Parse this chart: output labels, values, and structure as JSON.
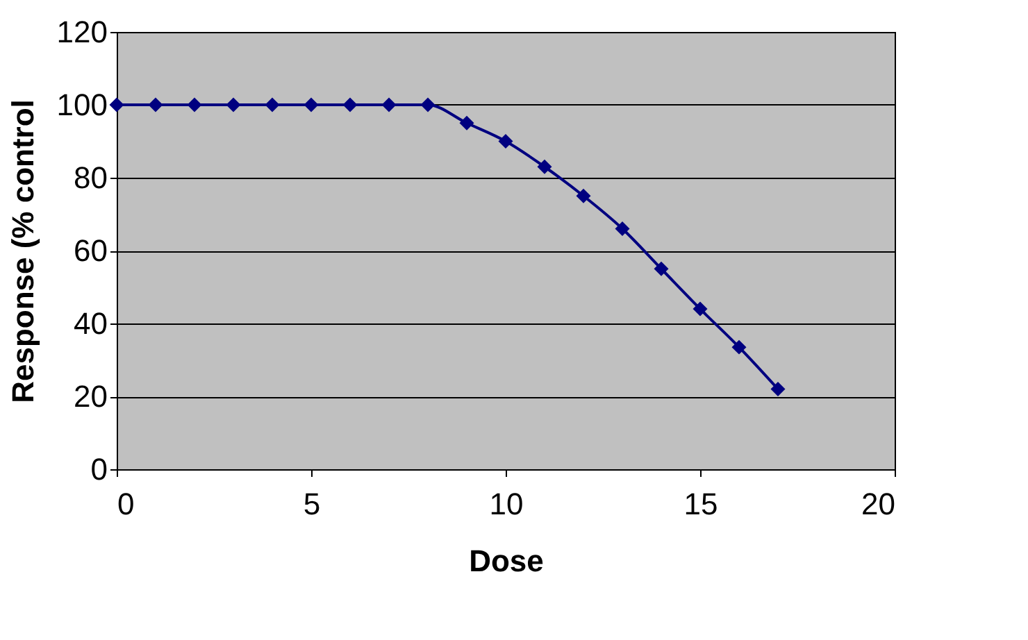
{
  "chart_data": {
    "type": "line",
    "xlabel": "Dose",
    "ylabel": "Response (% control",
    "x": [
      0,
      1,
      2,
      3,
      4,
      5,
      6,
      7,
      8,
      9,
      10,
      11,
      12,
      13,
      14,
      15,
      16,
      17
    ],
    "series": [
      {
        "color": "#000080",
        "values": [
          100,
          100,
          100,
          100,
          100,
          100,
          100,
          100,
          100,
          95,
          90,
          83,
          75,
          66,
          55,
          44,
          33.5,
          22
        ]
      }
    ],
    "xlim": [
      0,
      20
    ],
    "xticks": [
      0,
      5,
      10,
      15,
      20
    ],
    "ylim": [
      0,
      120
    ],
    "yticks": [
      0,
      20,
      40,
      60,
      80,
      100,
      120
    ],
    "grid": "y",
    "marker": "diamond",
    "line_style": "solid"
  }
}
